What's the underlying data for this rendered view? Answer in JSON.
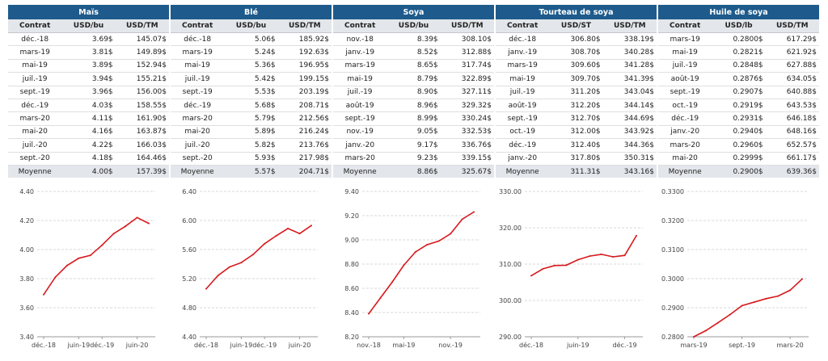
{
  "colors": {
    "header": "#1e5b8c",
    "line": "#d7191c",
    "grid": "#d9d9d9"
  },
  "panels": [
    {
      "title": "Maïs",
      "headers": [
        "Contrat",
        "USD/bu",
        "USD/TM"
      ],
      "rows": [
        [
          "déc.-18",
          "3.69$",
          "145.07$"
        ],
        [
          "mars-19",
          "3.81$",
          "149.89$"
        ],
        [
          "mai-19",
          "3.89$",
          "152.94$"
        ],
        [
          "juil.-19",
          "3.94$",
          "155.21$"
        ],
        [
          "sept.-19",
          "3.96$",
          "156.00$"
        ],
        [
          "déc.-19",
          "4.03$",
          "158.55$"
        ],
        [
          "mars-20",
          "4.11$",
          "161.90$"
        ],
        [
          "mai-20",
          "4.16$",
          "163.87$"
        ],
        [
          "juil.-20",
          "4.22$",
          "166.03$"
        ],
        [
          "sept.-20",
          "4.18$",
          "164.46$"
        ]
      ],
      "average": [
        "Moyenne",
        "4.00$",
        "157.39$"
      ]
    },
    {
      "title": "Blé",
      "headers": [
        "Contrat",
        "USD/bu",
        "USD/TM"
      ],
      "rows": [
        [
          "déc.-18",
          "5.06$",
          "185.92$"
        ],
        [
          "mars-19",
          "5.24$",
          "192.63$"
        ],
        [
          "mai-19",
          "5.36$",
          "196.95$"
        ],
        [
          "juil.-19",
          "5.42$",
          "199.15$"
        ],
        [
          "sept.-19",
          "5.53$",
          "203.19$"
        ],
        [
          "déc.-19",
          "5.68$",
          "208.71$"
        ],
        [
          "mars-20",
          "5.79$",
          "212.56$"
        ],
        [
          "mai-20",
          "5.89$",
          "216.24$"
        ],
        [
          "juil.-20",
          "5.82$",
          "213.76$"
        ],
        [
          "sept.-20",
          "5.93$",
          "217.98$"
        ]
      ],
      "average": [
        "Moyenne",
        "5.57$",
        "204.71$"
      ]
    },
    {
      "title": "Soya",
      "headers": [
        "Contrat",
        "USD/bu",
        "USD/TM"
      ],
      "rows": [
        [
          "nov.-18",
          "8.39$",
          "308.10$"
        ],
        [
          "janv.-19",
          "8.52$",
          "312.88$"
        ],
        [
          "mars-19",
          "8.65$",
          "317.74$"
        ],
        [
          "mai-19",
          "8.79$",
          "322.89$"
        ],
        [
          "juil.-19",
          "8.90$",
          "327.11$"
        ],
        [
          "août-19",
          "8.96$",
          "329.32$"
        ],
        [
          "sept.-19",
          "8.99$",
          "330.24$"
        ],
        [
          "nov.-19",
          "9.05$",
          "332.53$"
        ],
        [
          "janv.-20",
          "9.17$",
          "336.76$"
        ],
        [
          "mars-20",
          "9.23$",
          "339.15$"
        ]
      ],
      "average": [
        "Moyenne",
        "8.86$",
        "325.67$"
      ]
    },
    {
      "title": "Tourteau de soya",
      "headers": [
        "Contrat",
        "USD/ST",
        "USD/TM"
      ],
      "rows": [
        [
          "déc.-18",
          "306.80$",
          "338.19$"
        ],
        [
          "janv.-19",
          "308.70$",
          "340.28$"
        ],
        [
          "mars-19",
          "309.60$",
          "341.28$"
        ],
        [
          "mai-19",
          "309.70$",
          "341.39$"
        ],
        [
          "juil.-19",
          "311.20$",
          "343.04$"
        ],
        [
          "août-19",
          "312.20$",
          "344.14$"
        ],
        [
          "sept.-19",
          "312.70$",
          "344.69$"
        ],
        [
          "oct.-19",
          "312.00$",
          "343.92$"
        ],
        [
          "déc.-19",
          "312.40$",
          "344.36$"
        ],
        [
          "janv.-20",
          "317.80$",
          "350.31$"
        ]
      ],
      "average": [
        "Moyenne",
        "311.31$",
        "343.16$"
      ]
    },
    {
      "title": "Huile de soya",
      "headers": [
        "Contrat",
        "USD/lb",
        "USD/TM"
      ],
      "rows": [
        [
          "mars-19",
          "0.2800$",
          "617.29$"
        ],
        [
          "mai-19",
          "0.2821$",
          "621.92$"
        ],
        [
          "juil.-19",
          "0.2848$",
          "627.88$"
        ],
        [
          "août-19",
          "0.2876$",
          "634.05$"
        ],
        [
          "sept.-19",
          "0.2907$",
          "640.88$"
        ],
        [
          "oct.-19",
          "0.2919$",
          "643.53$"
        ],
        [
          "déc.-19",
          "0.2931$",
          "646.18$"
        ],
        [
          "janv.-20",
          "0.2940$",
          "648.16$"
        ],
        [
          "mars-20",
          "0.2960$",
          "652.57$"
        ],
        [
          "mai-20",
          "0.2999$",
          "661.17$"
        ]
      ],
      "average": [
        "Moyenne",
        "0.2900$",
        "639.36$"
      ]
    }
  ],
  "chart_data": [
    {
      "type": "line",
      "x": [
        "déc.-18",
        "mars-19",
        "mai-19",
        "juil.-19",
        "sept.-19",
        "déc.-19",
        "mars-20",
        "mai-20",
        "juil.-20",
        "sept.-20"
      ],
      "values": [
        3.69,
        3.81,
        3.89,
        3.94,
        3.96,
        4.03,
        4.11,
        4.16,
        4.22,
        4.18
      ],
      "ylim": [
        3.4,
        4.4
      ],
      "yticks": [
        "4.40",
        "4.20",
        "4.00",
        "3.80",
        "3.60",
        "3.40"
      ],
      "xticks": [
        {
          "index": 0,
          "label": "déc.-18"
        },
        {
          "index": 3,
          "label": "juin-19"
        },
        {
          "index": 5,
          "label": "déc.-19"
        },
        {
          "index": 8,
          "label": "juin-20"
        }
      ],
      "grid": true
    },
    {
      "type": "line",
      "x": [
        "déc.-18",
        "mars-19",
        "mai-19",
        "juil.-19",
        "sept.-19",
        "déc.-19",
        "mars-20",
        "mai-20",
        "juil.-20",
        "sept.-20"
      ],
      "values": [
        5.06,
        5.24,
        5.36,
        5.42,
        5.53,
        5.68,
        5.79,
        5.89,
        5.82,
        5.93
      ],
      "ylim": [
        4.4,
        6.4
      ],
      "yticks": [
        "6.40",
        "6.00",
        "5.60",
        "5.20",
        "4.80",
        "4.40"
      ],
      "xticks": [
        {
          "index": 0,
          "label": "déc.-18"
        },
        {
          "index": 3,
          "label": "juin-19"
        },
        {
          "index": 5,
          "label": "déc.-19"
        },
        {
          "index": 8,
          "label": "juin-20"
        }
      ],
      "grid": true
    },
    {
      "type": "line",
      "x": [
        "nov.-18",
        "janv.-19",
        "mars-19",
        "mai-19",
        "juil.-19",
        "août-19",
        "sept.-19",
        "nov.-19",
        "janv.-20",
        "mars-20"
      ],
      "values": [
        8.39,
        8.52,
        8.65,
        8.79,
        8.9,
        8.96,
        8.99,
        9.05,
        9.17,
        9.23
      ],
      "ylim": [
        8.2,
        9.4
      ],
      "yticks": [
        "9.40",
        "9.20",
        "9.00",
        "8.80",
        "8.60",
        "8.40",
        "8.20"
      ],
      "xticks": [
        {
          "index": 0,
          "label": "nov.-18"
        },
        {
          "index": 3,
          "label": "mai-19"
        },
        {
          "index": 7,
          "label": "nov.-19"
        }
      ],
      "grid": true
    },
    {
      "type": "line",
      "x": [
        "déc.-18",
        "janv.-19",
        "mars-19",
        "mai-19",
        "juil.-19",
        "août-19",
        "sept.-19",
        "oct.-19",
        "déc.-19",
        "janv.-20"
      ],
      "values": [
        306.8,
        308.7,
        309.6,
        309.7,
        311.2,
        312.2,
        312.7,
        312.0,
        312.4,
        317.8
      ],
      "ylim": [
        290,
        330
      ],
      "yticks": [
        "330.00",
        "320.00",
        "310.00",
        "300.00",
        "290.00"
      ],
      "xticks": [
        {
          "index": 0,
          "label": "déc.-18"
        },
        {
          "index": 4,
          "label": "juin-19"
        },
        {
          "index": 8,
          "label": "déc.-19"
        }
      ],
      "grid": true
    },
    {
      "type": "line",
      "x": [
        "mars-19",
        "mai-19",
        "juil.-19",
        "août-19",
        "sept.-19",
        "oct.-19",
        "déc.-19",
        "janv.-20",
        "mars-20",
        "mai-20"
      ],
      "values": [
        0.28,
        0.2821,
        0.2848,
        0.2876,
        0.2907,
        0.2919,
        0.2931,
        0.294,
        0.296,
        0.2999
      ],
      "ylim": [
        0.28,
        0.33
      ],
      "yticks": [
        "0.3300",
        "0.3200",
        "0.3100",
        "0.3000",
        "0.2900",
        "0.2800"
      ],
      "xticks": [
        {
          "index": 0,
          "label": "mars-19"
        },
        {
          "index": 4,
          "label": "sept.-19"
        },
        {
          "index": 8,
          "label": "mars-20"
        }
      ],
      "grid": true
    }
  ]
}
